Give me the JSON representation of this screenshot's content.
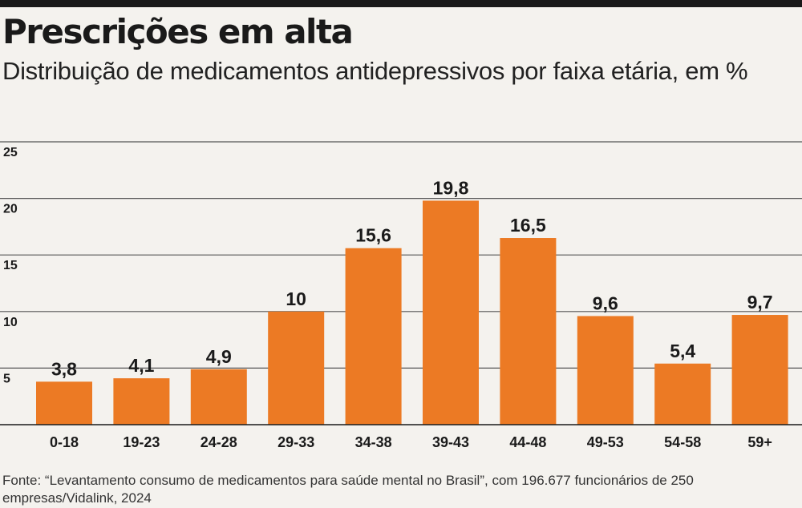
{
  "header": {
    "title": "Prescrições em alta",
    "subtitle": "Distribuição de medicamentos antidepressivos por faixa etária, em %"
  },
  "source": "Fonte: “Levantamento consumo de medicamentos para saúde mental no Brasil”, com 196.677 funcionários de 250 empresas/Vidalink, 2024",
  "chart_data": {
    "type": "bar",
    "title": "Prescrições em alta",
    "subtitle": "Distribuição de medicamentos antidepressivos por faixa etária, em %",
    "xlabel": "",
    "ylabel": "",
    "categories": [
      "0-18",
      "19-23",
      "24-28",
      "29-33",
      "34-38",
      "39-43",
      "44-48",
      "49-53",
      "54-58",
      "59+"
    ],
    "values": [
      3.8,
      4.1,
      4.9,
      10,
      15.6,
      19.8,
      16.5,
      9.6,
      5.4,
      9.7
    ],
    "value_labels": [
      "3,8",
      "4,1",
      "4,9",
      "10",
      "15,6",
      "19,8",
      "16,5",
      "9,6",
      "5,4",
      "9,7"
    ],
    "ylim": [
      0,
      25
    ],
    "yticks": [
      5,
      10,
      15,
      20,
      25
    ],
    "grid": true,
    "legend": "none",
    "bar_color": "#ec7a24",
    "grid_color": "#555555"
  }
}
